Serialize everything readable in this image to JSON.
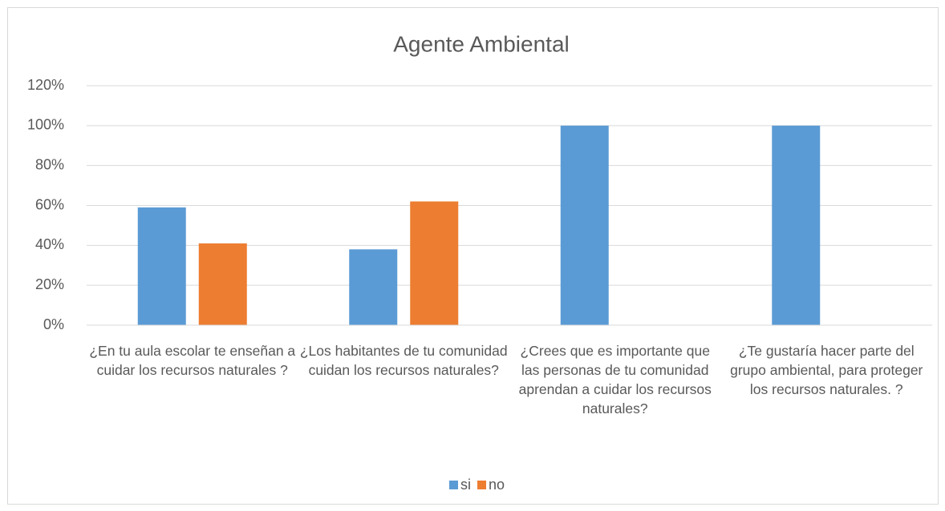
{
  "chart_data": {
    "type": "bar",
    "title": "Agente Ambiental",
    "categories": [
      "¿En tu aula escolar te enseñan a cuidar los recursos naturales ?",
      "¿Los habitantes de tu comunidad cuidan los recursos naturales?",
      "¿Crees que es importante que las personas de tu comunidad aprendan a cuidar los recursos naturales?",
      "¿Te gustaría hacer parte del grupo ambiental, para proteger los recursos naturales. ?"
    ],
    "series": [
      {
        "name": "si",
        "color": "#5b9bd5",
        "values": [
          59,
          38,
          100,
          100
        ]
      },
      {
        "name": "no",
        "color": "#ed7d31",
        "values": [
          41,
          62,
          0,
          0
        ]
      }
    ],
    "ylim": [
      0,
      120
    ],
    "yticks": [
      {
        "value": 0,
        "label": "0%"
      },
      {
        "value": 20,
        "label": "20%"
      },
      {
        "value": 40,
        "label": "40%"
      },
      {
        "value": 60,
        "label": "60%"
      },
      {
        "value": 80,
        "label": "80%"
      },
      {
        "value": 100,
        "label": "100%"
      },
      {
        "value": 120,
        "label": "120%"
      }
    ],
    "grid": true,
    "legend": "bottom"
  }
}
